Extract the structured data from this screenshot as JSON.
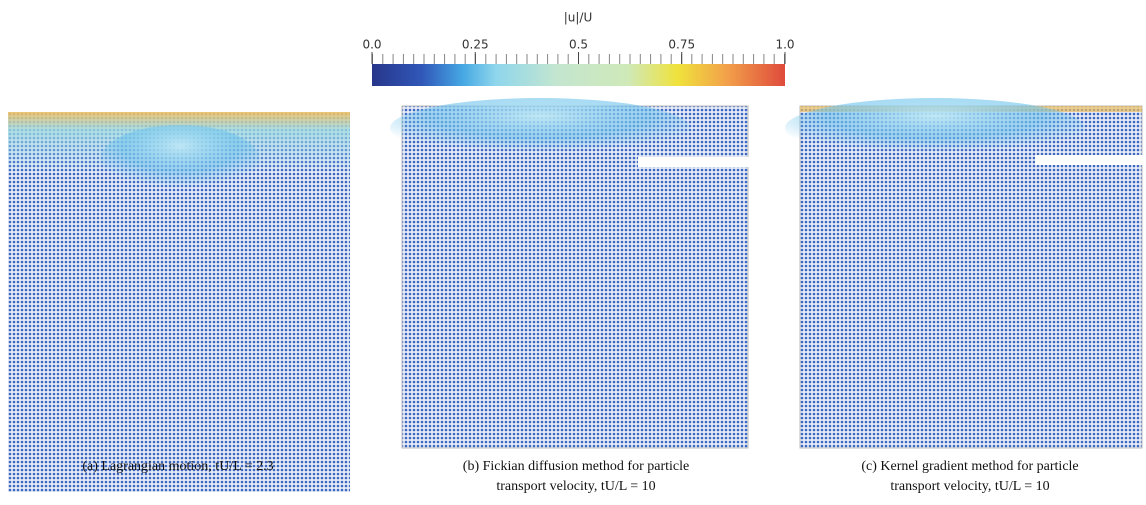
{
  "colorbar": {
    "title": "|u|/U",
    "lim": [
      0,
      1
    ],
    "ticks": [
      {
        "value": 0,
        "label": "0.0"
      },
      0.25,
      0.5,
      0.75,
      {
        "value": 1,
        "label": "1.0"
      }
    ]
  },
  "panels": [
    {
      "caption": [
        "(a) Lagrangian motion, tU/L = 2.3"
      ]
    },
    {
      "caption": [
        "(b) Fickian diffusion method for particle",
        "transport velocity, tU/L = 10"
      ]
    },
    {
      "caption": [
        "(c) Kernel gradient method for particle",
        "transport velocity, tU/L = 10"
      ]
    }
  ]
}
